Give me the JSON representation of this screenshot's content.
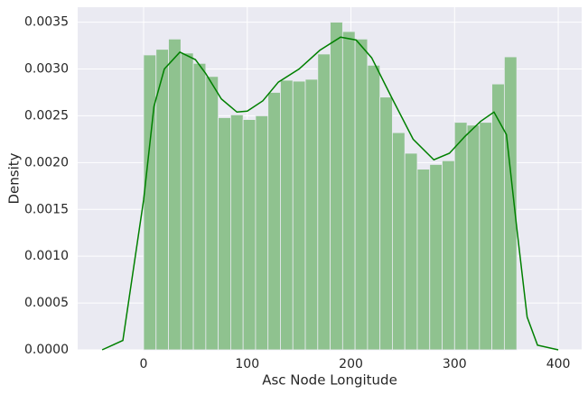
{
  "chart_data": {
    "type": "histogram",
    "xlabel": "Asc Node Longitude",
    "ylabel": "Density",
    "bins": [
      0,
      12,
      24,
      36,
      48,
      60,
      72,
      84,
      96,
      108,
      120,
      132,
      144,
      156,
      168,
      180,
      192,
      204,
      216,
      228,
      240,
      252,
      264,
      276,
      288,
      300,
      312,
      324,
      336,
      348,
      360
    ],
    "values": [
      0.00315,
      0.00321,
      0.00332,
      0.00317,
      0.00306,
      0.00292,
      0.00248,
      0.00251,
      0.00246,
      0.0025,
      0.00275,
      0.00288,
      0.00287,
      0.00289,
      0.00316,
      0.0035,
      0.0034,
      0.00332,
      0.00304,
      0.0027,
      0.00232,
      0.0021,
      0.00193,
      0.00198,
      0.00202,
      0.00243,
      0.0024,
      0.00243,
      0.00284,
      0.00313
    ],
    "color": "#8fc28f",
    "kde": {
      "color": "#008000",
      "x": [
        -40,
        -20,
        0,
        10,
        20,
        35,
        50,
        60,
        75,
        90,
        100,
        115,
        130,
        150,
        170,
        190,
        205,
        220,
        240,
        260,
        280,
        295,
        310,
        325,
        338,
        350,
        360,
        370,
        380,
        400
      ],
      "y": [
        0,
        0.0001,
        0.0016,
        0.0026,
        0.003,
        0.00318,
        0.0031,
        0.00295,
        0.00268,
        0.00254,
        0.00255,
        0.00266,
        0.00286,
        0.003,
        0.0032,
        0.00334,
        0.00331,
        0.00312,
        0.00268,
        0.00225,
        0.00203,
        0.0021,
        0.00228,
        0.00244,
        0.00254,
        0.0023,
        0.0013,
        0.00035,
        5e-05,
        0
      ]
    },
    "xlim": [
      -63.6,
      422.6
    ],
    "ylim": [
      0,
      0.00366
    ],
    "xticks": [
      0,
      100,
      200,
      300,
      400
    ],
    "yticks": [
      {
        "value": 0,
        "label": "0.0000"
      },
      {
        "value": 0.0005,
        "label": "0.0005"
      },
      {
        "value": 0.001,
        "label": "0.0010"
      },
      {
        "value": 0.0015,
        "label": "0.0015"
      },
      {
        "value": 0.002,
        "label": "0.0020"
      },
      {
        "value": 0.0025,
        "label": "0.0025"
      },
      {
        "value": 0.003,
        "label": "0.0030"
      },
      {
        "value": 0.0035,
        "label": "0.0035"
      }
    ],
    "grid": true
  }
}
